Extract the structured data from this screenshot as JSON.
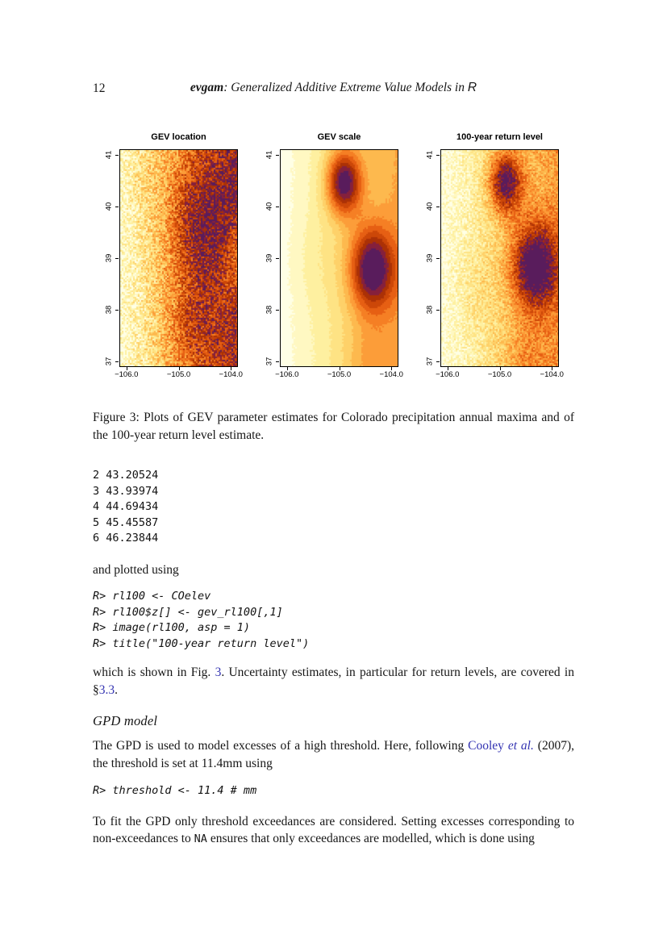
{
  "colors": {
    "link": "#3434b2"
  },
  "header": {
    "page_number": "12",
    "title_pkg": "evgam",
    "title_rest": ": Generalized Additive Extreme Value Models in ",
    "title_lang": "R"
  },
  "chart_data": [
    {
      "type": "heatmap",
      "title": "GEV location",
      "x_ticks": [
        "−106.0",
        "−105.0",
        "−104.0"
      ],
      "y_ticks": [
        "37",
        "38",
        "39",
        "40",
        "41"
      ],
      "x_range": [
        -106.12,
        -103.88
      ],
      "y_range": [
        36.9,
        41.1
      ],
      "legend": "off",
      "palette": [
        "#FFFFE5",
        "#FFF8C2",
        "#FEF0A0",
        "#FEE384",
        "#FED169",
        "#FDB94E",
        "#FC9D39",
        "#F57F24",
        "#E65F13",
        "#CC4708",
        "#AB3106",
        "#85203C",
        "#591C5C"
      ],
      "base": [
        0.06,
        0.8
      ],
      "blobs": [
        [
          0.68,
          0.35,
          0.42,
          0.3
        ],
        [
          0.6,
          0.82,
          0.3,
          0.16
        ],
        [
          1.12,
          0.5,
          0.3,
          -0.42
        ],
        [
          0.12,
          0.12,
          0.25,
          0.06
        ]
      ],
      "noise": 0.18,
      "cell": 2,
      "seed": 3
    },
    {
      "type": "heatmap",
      "title": "GEV scale",
      "x_ticks": [
        "−106.0",
        "−105.0",
        "−104.0"
      ],
      "y_ticks": [
        "37",
        "38",
        "39",
        "40",
        "41"
      ],
      "x_range": [
        -106.12,
        -103.88
      ],
      "y_range": [
        36.9,
        41.1
      ],
      "legend": "off",
      "palette": [
        "#FFFFE5",
        "#FFF8C2",
        "#FEF0A0",
        "#FEE384",
        "#FED169",
        "#FDB94E",
        "#FC9D39",
        "#F57F24",
        "#E65F13",
        "#CC4708",
        "#AB3106",
        "#85203C",
        "#591C5C"
      ],
      "base": [
        0.03,
        0.44
      ],
      "blobs": [
        [
          0.54,
          0.15,
          0.21,
          0.74
        ],
        [
          0.78,
          0.55,
          0.27,
          0.7
        ],
        [
          0.3,
          0.5,
          0.3,
          0.05
        ],
        [
          0.75,
          1.0,
          0.3,
          0.14
        ]
      ],
      "noise": 0.012,
      "cell": 2,
      "seed": 5
    },
    {
      "type": "heatmap",
      "title": "100-year return level",
      "x_ticks": [
        "−106.0",
        "−105.0",
        "−104.0"
      ],
      "y_ticks": [
        "37",
        "38",
        "39",
        "40",
        "41"
      ],
      "x_range": [
        -106.12,
        -103.88
      ],
      "y_range": [
        36.9,
        41.1
      ],
      "legend": "off",
      "palette": [
        "#FFFFE5",
        "#FFF8C2",
        "#FEF0A0",
        "#FEE384",
        "#FED169",
        "#FDB94E",
        "#FC9D39",
        "#F57F24",
        "#E65F13",
        "#CC4708",
        "#AB3106",
        "#85203C",
        "#591C5C"
      ],
      "base": [
        0.05,
        0.46
      ],
      "blobs": [
        [
          0.55,
          0.15,
          0.2,
          0.7
        ],
        [
          0.8,
          0.54,
          0.28,
          0.72
        ],
        [
          0.3,
          0.62,
          0.3,
          0.07
        ],
        [
          0.7,
          1.02,
          0.3,
          0.16
        ]
      ],
      "noise": 0.12,
      "cell": 2,
      "seed": 9
    }
  ],
  "figure_caption": "Figure 3:  Plots of GEV parameter estimates for Colorado precipitation annual maxima and of the 100-year return level estimate.",
  "output_block": [
    "2 43.20524",
    "3 43.93974",
    "4 44.69434",
    "5 45.45587",
    "6 46.23844"
  ],
  "plotted_text": "and plotted using",
  "code_plot": [
    "R> rl100 <- COelev",
    "R> rl100$z[] <- gev_rl100[,1]",
    "R> image(rl100, asp = 1)",
    "R> title(\"100-year return level\")"
  ],
  "fig_ref_paragraph": [
    {
      "t": "which is shown in Fig. ",
      "c": ""
    },
    {
      "t": "3",
      "c": "link"
    },
    {
      "t": ". Uncertainty estimates, in particular for return levels, are covered in §",
      "c": ""
    },
    {
      "t": "3.3",
      "c": "link"
    },
    {
      "t": ".",
      "c": ""
    }
  ],
  "section_heading": "GPD model",
  "gpd_paragraph": [
    {
      "t": "The GPD is used to model excesses of a high threshold. Here, following ",
      "c": ""
    },
    {
      "t": "Cooley",
      "c": "link"
    },
    {
      "t": " ",
      "c": ""
    },
    {
      "t": "et al.",
      "c": "link em"
    },
    {
      "t": " (2007), the threshold is set at 11.4mm using",
      "c": ""
    }
  ],
  "code_threshold": [
    "R> threshold <- 11.4 # mm"
  ],
  "fit_paragraph": [
    {
      "t": "To fit the GPD only threshold exceedances are considered. Setting excesses corresponding to non-exceedances to ",
      "c": ""
    },
    {
      "t": "NA",
      "c": "mono"
    },
    {
      "t": " ensures that only exceedances are modelled, which is done using",
      "c": ""
    }
  ]
}
